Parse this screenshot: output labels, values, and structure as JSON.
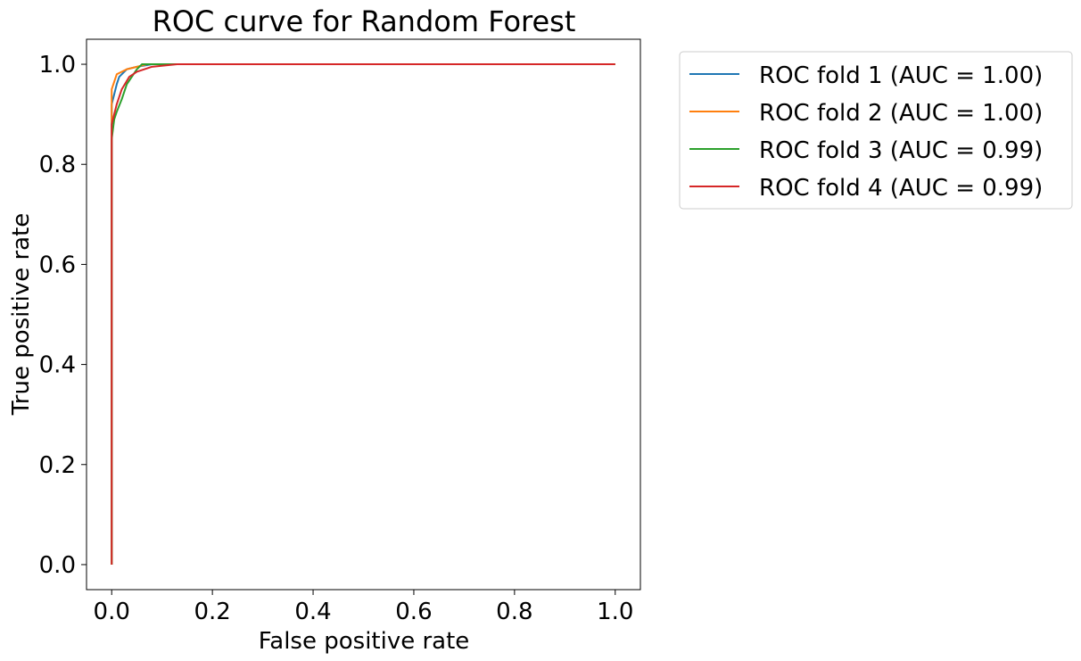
{
  "chart_data": {
    "type": "line",
    "title": "ROC curve for Random Forest",
    "xlabel": "False positive rate",
    "ylabel": "True positive rate",
    "xlim": [
      -0.05,
      1.05
    ],
    "ylim": [
      -0.05,
      1.05
    ],
    "xticks": [
      0.0,
      0.2,
      0.4,
      0.6,
      0.8,
      1.0
    ],
    "xtick_labels": [
      "0.0",
      "0.2",
      "0.4",
      "0.6",
      "0.8",
      "1.0"
    ],
    "yticks": [
      0.0,
      0.2,
      0.4,
      0.6,
      0.8,
      1.0
    ],
    "ytick_labels": [
      "0.0",
      "0.2",
      "0.4",
      "0.6",
      "0.8",
      "1.0"
    ],
    "grid": false,
    "legend_position": "outside-top-right",
    "series": [
      {
        "name": "ROC fold 1 (AUC = 1.00)",
        "color": "#1f77b4",
        "x": [
          0.0,
          0.0,
          0.005,
          0.01,
          0.015,
          0.03,
          0.05,
          0.08,
          0.12,
          1.0
        ],
        "y": [
          0.0,
          0.92,
          0.94,
          0.96,
          0.975,
          0.99,
          0.995,
          1.0,
          1.0,
          1.0
        ]
      },
      {
        "name": "ROC fold 2 (AUC = 1.00)",
        "color": "#ff7f0e",
        "x": [
          0.0,
          0.0,
          0.005,
          0.01,
          0.03,
          0.05,
          0.07,
          0.1,
          1.0
        ],
        "y": [
          0.0,
          0.95,
          0.965,
          0.98,
          0.99,
          0.995,
          1.0,
          1.0,
          1.0
        ]
      },
      {
        "name": "ROC fold 3 (AUC = 0.99)",
        "color": "#2ca02c",
        "x": [
          0.0,
          0.0,
          0.005,
          0.01,
          0.02,
          0.03,
          0.05,
          0.06,
          0.1,
          1.0
        ],
        "y": [
          0.0,
          0.85,
          0.89,
          0.905,
          0.93,
          0.96,
          0.99,
          1.0,
          1.0,
          1.0
        ]
      },
      {
        "name": "ROC fold 4 (AUC = 0.99)",
        "color": "#d62728",
        "x": [
          0.0,
          0.0,
          0.005,
          0.01,
          0.02,
          0.035,
          0.05,
          0.08,
          0.13,
          1.0
        ],
        "y": [
          0.0,
          0.88,
          0.9,
          0.92,
          0.95,
          0.975,
          0.985,
          0.995,
          1.0,
          1.0
        ]
      }
    ]
  }
}
